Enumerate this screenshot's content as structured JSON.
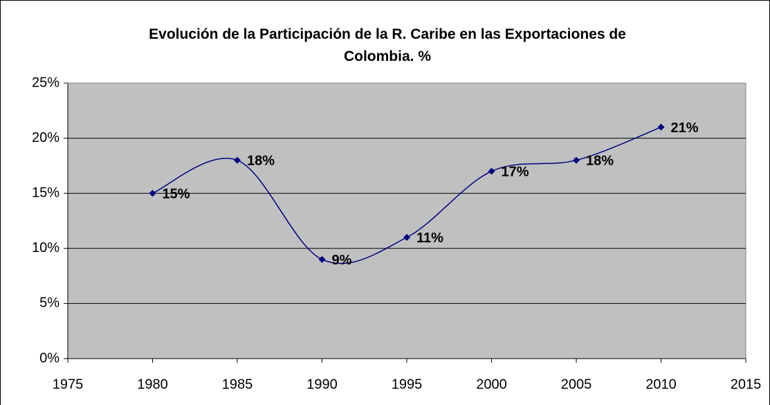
{
  "chart_data": {
    "type": "line",
    "title": "Evolución de la Participación de la R. Caribe en las Exportaciones de Colombia. %",
    "x": [
      1980,
      1985,
      1990,
      1995,
      2000,
      2005,
      2010
    ],
    "series": [
      {
        "color": "#000080",
        "values": [
          15,
          18,
          9,
          11,
          17,
          18,
          21
        ],
        "value_labels": [
          "15%",
          "18%",
          "9%",
          "11%",
          "17%",
          "18%",
          "21%"
        ]
      }
    ],
    "xlim": [
      1975,
      2015
    ],
    "xticks": [
      1975,
      1980,
      1985,
      1990,
      1995,
      2000,
      2005,
      2010,
      2015
    ],
    "ylim": [
      0,
      25
    ],
    "yticks": [
      {
        "value": 0,
        "label": "0%"
      },
      {
        "value": 5,
        "label": "5%"
      },
      {
        "value": 10,
        "label": "10%"
      },
      {
        "value": 15,
        "label": "15%"
      },
      {
        "value": 20,
        "label": "20%"
      },
      {
        "value": 25,
        "label": "25%"
      }
    ],
    "grid": true,
    "smooth": true,
    "plot_background": "#c0c0c0"
  }
}
